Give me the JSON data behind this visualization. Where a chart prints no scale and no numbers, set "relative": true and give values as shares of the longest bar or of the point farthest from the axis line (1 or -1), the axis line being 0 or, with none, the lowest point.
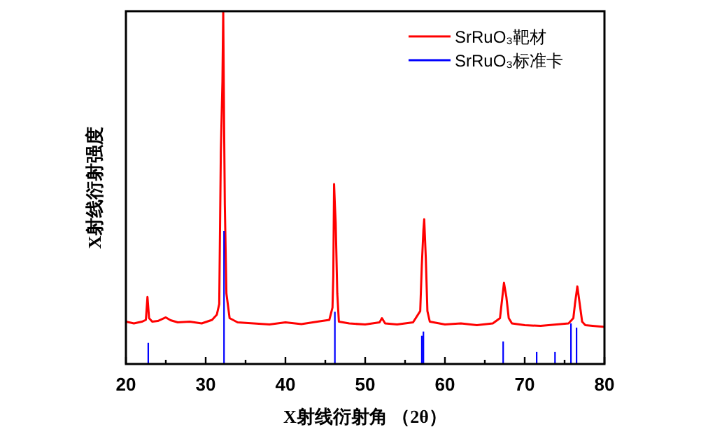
{
  "chart_data": {
    "type": "line",
    "xlabel": "X射线衍射角 （2θ）",
    "ylabel": "X射线衍射强度",
    "relative": true,
    "xlim": [
      20,
      80
    ],
    "xticks": [
      20,
      {
        "value": 25,
        "label": null
      },
      30,
      {
        "value": 35,
        "label": null
      },
      40,
      {
        "value": 45,
        "label": null
      },
      50,
      {
        "value": 55,
        "label": null
      },
      60,
      {
        "value": 65,
        "label": null
      },
      70,
      {
        "value": 75,
        "label": null
      },
      80
    ],
    "tick_labels": "x",
    "legend": "top right",
    "grid": false,
    "series": [
      {
        "name": "SrRuO₃靶材",
        "color": "#ff0000",
        "x": [
          20,
          21,
          22,
          22.5,
          22.7,
          22.9,
          23.3,
          24,
          25,
          25.6,
          26.5,
          28,
          29.5,
          30.8,
          31.4,
          31.7,
          31.9,
          32.1,
          32.2,
          32.3,
          32.4,
          32.6,
          33,
          34,
          36,
          38,
          40,
          42,
          44,
          45.5,
          45.9,
          46.0,
          46.1,
          46.2,
          46.3,
          46.5,
          46.7,
          48,
          50,
          51.8,
          52.1,
          52.5,
          54,
          56,
          56.9,
          57.1,
          57.3,
          57.4,
          57.6,
          57.8,
          58.1,
          60,
          62,
          64,
          66,
          66.9,
          67.2,
          67.4,
          67.7,
          68,
          68.4,
          70,
          72,
          74,
          75.5,
          76.1,
          76.3,
          76.6,
          76.9,
          77.2,
          77.6,
          78.5,
          80
        ],
        "values": [
          0.12,
          0.115,
          0.12,
          0.125,
          0.19,
          0.13,
          0.12,
          0.122,
          0.132,
          0.124,
          0.118,
          0.12,
          0.115,
          0.125,
          0.14,
          0.17,
          0.6,
          0.8,
          1.0,
          0.7,
          0.45,
          0.2,
          0.13,
          0.118,
          0.115,
          0.112,
          0.118,
          0.113,
          0.12,
          0.125,
          0.16,
          0.25,
          0.51,
          0.45,
          0.4,
          0.2,
          0.12,
          0.115,
          0.112,
          0.118,
          0.13,
          0.115,
          0.112,
          0.118,
          0.15,
          0.28,
          0.38,
          0.41,
          0.3,
          0.15,
          0.12,
          0.112,
          0.115,
          0.11,
          0.115,
          0.13,
          0.19,
          0.23,
          0.19,
          0.13,
          0.115,
          0.11,
          0.108,
          0.112,
          0.115,
          0.13,
          0.17,
          0.22,
          0.17,
          0.12,
          0.11,
          0.108,
          0.105
        ]
      },
      {
        "name": "SrRuO₃标准卡",
        "color": "#0000ff",
        "type": "bar",
        "x": [
          22.8,
          32.3,
          46.2,
          57.1,
          57.3,
          67.3,
          71.5,
          73.8,
          75.8,
          76.5
        ],
        "values": [
          0.06,
          0.377,
          0.148,
          0.08,
          0.092,
          0.064,
          0.034,
          0.034,
          0.115,
          0.103
        ]
      }
    ]
  }
}
